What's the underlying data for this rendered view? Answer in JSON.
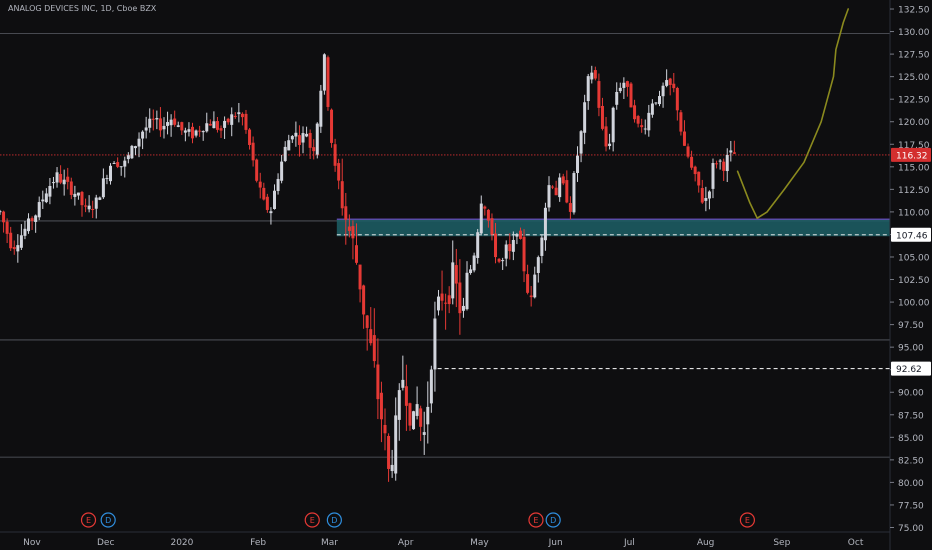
{
  "header": {
    "title": "ANALOG DEVICES INC, 1D, Cboe BZX"
  },
  "colors": {
    "background": "#0e0e10",
    "up": "#d1d4dc",
    "down": "#e53935",
    "zone": "#1c5f66",
    "zone_line": "#7b4fd6",
    "curve": "#8b8a1e",
    "price_line": "#d32f2f"
  },
  "chart_data": {
    "type": "candlestick",
    "title": "ANALOG DEVICES INC, 1D, Cboe BZX",
    "ylim": [
      74.5,
      133.5
    ],
    "y_ticks": [
      75,
      77.5,
      80,
      82.5,
      85,
      87.5,
      90,
      92.5,
      95,
      97.5,
      100,
      102.5,
      105,
      107.5,
      110,
      112.5,
      115,
      117.5,
      120,
      122.5,
      125,
      127.5,
      130,
      132.5
    ],
    "y_tick_labels": [
      "75.00",
      "77.50",
      "80.00",
      "82.50",
      "85.00",
      "87.50",
      "90.00",
      "92.50",
      "95.00",
      "97.50",
      "100.00",
      "102.50",
      "105.00",
      "107.50",
      "110.00",
      "112.50",
      "115.00",
      "117.50",
      "120.00",
      "122.50",
      "125.00",
      "127.50",
      "130.00",
      "132.50"
    ],
    "x_labels": [
      {
        "label": "Nov",
        "day": 0
      },
      {
        "label": "Dec",
        "day": 30
      },
      {
        "label": "2020",
        "day": 61
      },
      {
        "label": "Feb",
        "day": 92
      },
      {
        "label": "Mar",
        "day": 121
      },
      {
        "label": "Apr",
        "day": 152
      },
      {
        "label": "May",
        "day": 182
      },
      {
        "label": "Jun",
        "day": 213
      },
      {
        "label": "Jul",
        "day": 243
      },
      {
        "label": "Aug",
        "day": 274
      },
      {
        "label": "Sep",
        "day": 305
      },
      {
        "label": "Oct",
        "day": 335
      }
    ],
    "x_range_days": [
      -13,
      349
    ],
    "support_lines": [
      129.8,
      109.0,
      95.8,
      82.8
    ],
    "price_labels": [
      {
        "value": 116.32,
        "text": "116.32",
        "color": "#d32f2f",
        "style": "dotted"
      },
      {
        "value": 107.46,
        "text": "107.46",
        "color": "#ffffff",
        "style": "dashed"
      },
      {
        "value": 92.62,
        "text": "92.62",
        "color": "#ffffff",
        "style": "dashed"
      }
    ],
    "zone": {
      "from_day": 124,
      "low": 107.3,
      "high": 109.2
    },
    "events": [
      {
        "day": 23,
        "letter": "E",
        "kind": "earnings"
      },
      {
        "day": 31,
        "letter": "D",
        "kind": "dividend"
      },
      {
        "day": 114,
        "letter": "E",
        "kind": "earnings"
      },
      {
        "day": 123,
        "letter": "D",
        "kind": "dividend"
      },
      {
        "day": 205,
        "letter": "E",
        "kind": "earnings"
      },
      {
        "day": 212,
        "letter": "D",
        "kind": "dividend"
      },
      {
        "day": 291,
        "letter": "E",
        "kind": "earnings"
      }
    ],
    "path": [
      [
        -13,
        110
      ],
      [
        -8,
        106
      ],
      [
        -3,
        108
      ],
      [
        2,
        110
      ],
      [
        6,
        112.5
      ],
      [
        10,
        114
      ],
      [
        14,
        113
      ],
      [
        18,
        112
      ],
      [
        22,
        110
      ],
      [
        26,
        111
      ],
      [
        30,
        114
      ],
      [
        33,
        116
      ],
      [
        37,
        115
      ],
      [
        41,
        117
      ],
      [
        45,
        119
      ],
      [
        49,
        120
      ],
      [
        53,
        119.5
      ],
      [
        57,
        120.5
      ],
      [
        61,
        119
      ],
      [
        65,
        118.5
      ],
      [
        69,
        119.5
      ],
      [
        73,
        120
      ],
      [
        77,
        119
      ],
      [
        81,
        120.5
      ],
      [
        85,
        121
      ],
      [
        88,
        118
      ],
      [
        91,
        114
      ],
      [
        94,
        111
      ],
      [
        97,
        110
      ],
      [
        100,
        114
      ],
      [
        103,
        117
      ],
      [
        106,
        119
      ],
      [
        109,
        118
      ],
      [
        112,
        119
      ],
      [
        114,
        116
      ],
      [
        116,
        120
      ],
      [
        118,
        125
      ],
      [
        119,
        127
      ],
      [
        121,
        120
      ],
      [
        123,
        115
      ],
      [
        125,
        113
      ],
      [
        127,
        110
      ],
      [
        129,
        108
      ],
      [
        131,
        106
      ],
      [
        133,
        103
      ],
      [
        135,
        99
      ],
      [
        137,
        96
      ],
      [
        139,
        93
      ],
      [
        141,
        89
      ],
      [
        143,
        86
      ],
      [
        145,
        81
      ],
      [
        147,
        84
      ],
      [
        149,
        88
      ],
      [
        151,
        92
      ],
      [
        153,
        89
      ],
      [
        155,
        86
      ],
      [
        157,
        89
      ],
      [
        159,
        84
      ],
      [
        161,
        89
      ],
      [
        163,
        96
      ],
      [
        165,
        99
      ],
      [
        167,
        101
      ],
      [
        169,
        100.5
      ],
      [
        171,
        103
      ],
      [
        173,
        101
      ],
      [
        175,
        98
      ],
      [
        177,
        103
      ],
      [
        179,
        104
      ],
      [
        181,
        107.5
      ],
      [
        183,
        112
      ],
      [
        185,
        110
      ],
      [
        187,
        107
      ],
      [
        189,
        105
      ],
      [
        191,
        104
      ],
      [
        193,
        106
      ],
      [
        195,
        105
      ],
      [
        197,
        108.5
      ],
      [
        199,
        106
      ],
      [
        201,
        102
      ],
      [
        203,
        100
      ],
      [
        205,
        104
      ],
      [
        207,
        107
      ],
      [
        209,
        111
      ],
      [
        211,
        114
      ],
      [
        213,
        112
      ],
      [
        215,
        113.5
      ],
      [
        217,
        112
      ],
      [
        219,
        110.5
      ],
      [
        221,
        115
      ],
      [
        223,
        118
      ],
      [
        225,
        122
      ],
      [
        227,
        126
      ],
      [
        229,
        125
      ],
      [
        231,
        121
      ],
      [
        233,
        117
      ],
      [
        235,
        118
      ],
      [
        237,
        123
      ],
      [
        239,
        124
      ],
      [
        241,
        124.5
      ],
      [
        243,
        122.5
      ],
      [
        245,
        121
      ],
      [
        247,
        119
      ],
      [
        249,
        119.5
      ],
      [
        251,
        121
      ],
      [
        253,
        123
      ],
      [
        255,
        122
      ],
      [
        257,
        124
      ],
      [
        259,
        124
      ],
      [
        261,
        123.5
      ],
      [
        263,
        121
      ],
      [
        265,
        117
      ],
      [
        267,
        116
      ],
      [
        269,
        114
      ],
      [
        271,
        113
      ],
      [
        273,
        111
      ],
      [
        275,
        112
      ],
      [
        277,
        115
      ],
      [
        279,
        116
      ],
      [
        281,
        115
      ],
      [
        283,
        116
      ],
      [
        285,
        116.5
      ],
      [
        287,
        116.3
      ]
    ],
    "drawn_curve": [
      [
        287,
        114.5
      ],
      [
        292,
        111
      ],
      [
        295,
        109.3
      ],
      [
        299,
        110
      ],
      [
        306,
        112.5
      ],
      [
        314,
        115.5
      ],
      [
        321,
        120
      ],
      [
        326,
        125
      ],
      [
        327,
        128
      ],
      [
        330,
        131
      ],
      [
        332,
        132.5
      ]
    ]
  }
}
